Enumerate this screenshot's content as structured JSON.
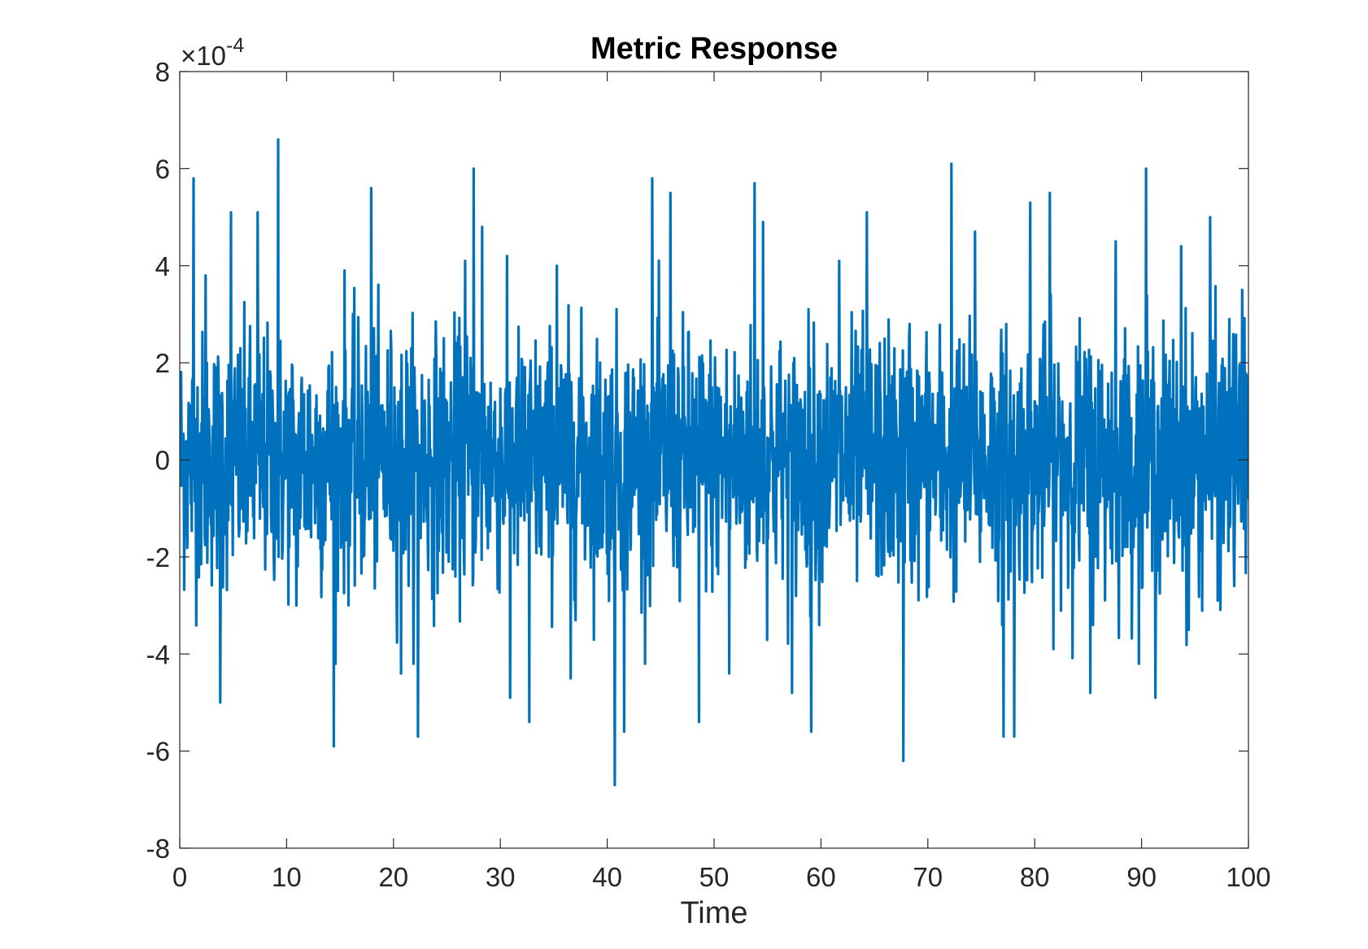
{
  "chart_data": {
    "type": "line",
    "title": "Metric Response",
    "xlabel": "Time",
    "ylabel": "",
    "xlim": [
      0,
      100
    ],
    "ylim": [
      -8,
      8
    ],
    "y_multiplier_base": "10",
    "y_multiplier_exponent": "-4",
    "x_ticks": [
      0,
      10,
      20,
      30,
      40,
      50,
      60,
      70,
      80,
      90,
      100
    ],
    "y_ticks": [
      -8,
      -6,
      -4,
      -2,
      0,
      2,
      4,
      6,
      8
    ],
    "grid": false,
    "legend": "none",
    "line_color": "#0072BD",
    "series": [
      {
        "x": [
          0,
          1.3,
          2.4,
          3.8,
          4.8,
          7.3,
          9.2,
          10.9,
          14.4,
          15.4,
          17.9,
          20.7,
          22.3,
          26.7,
          27.5,
          28.3,
          30.9,
          32.7,
          35.3,
          36.6,
          40.7,
          41.6,
          44.2,
          45.9,
          48.6,
          51.4,
          53.8,
          54.6,
          57.3,
          59.1,
          61.7,
          64.3,
          67.7,
          68.3,
          72.2,
          74.4,
          77.1,
          78.1,
          79.6,
          81.4,
          85.2,
          87.6,
          90.4,
          91.3,
          93.7,
          94.4,
          96.4,
          98.2,
          99.4,
          100
        ],
        "y": [
          0.3,
          5.8,
          3.8,
          -5.0,
          5.1,
          5.1,
          6.6,
          -3.0,
          -5.9,
          3.9,
          5.6,
          -4.4,
          -5.7,
          4.1,
          6.0,
          4.8,
          -4.9,
          -5.4,
          4.0,
          -4.5,
          -6.7,
          -5.6,
          5.8,
          5.5,
          -5.4,
          -4.4,
          5.7,
          4.9,
          -4.8,
          -5.6,
          4.1,
          5.1,
          -6.2,
          2.8,
          6.1,
          4.7,
          -5.7,
          -5.7,
          5.3,
          5.5,
          -4.8,
          4.5,
          6.0,
          -4.9,
          4.4,
          -3.5,
          5.0,
          2.9,
          3.5,
          0.9
        ],
        "noise_std": 1.3
      }
    ]
  }
}
